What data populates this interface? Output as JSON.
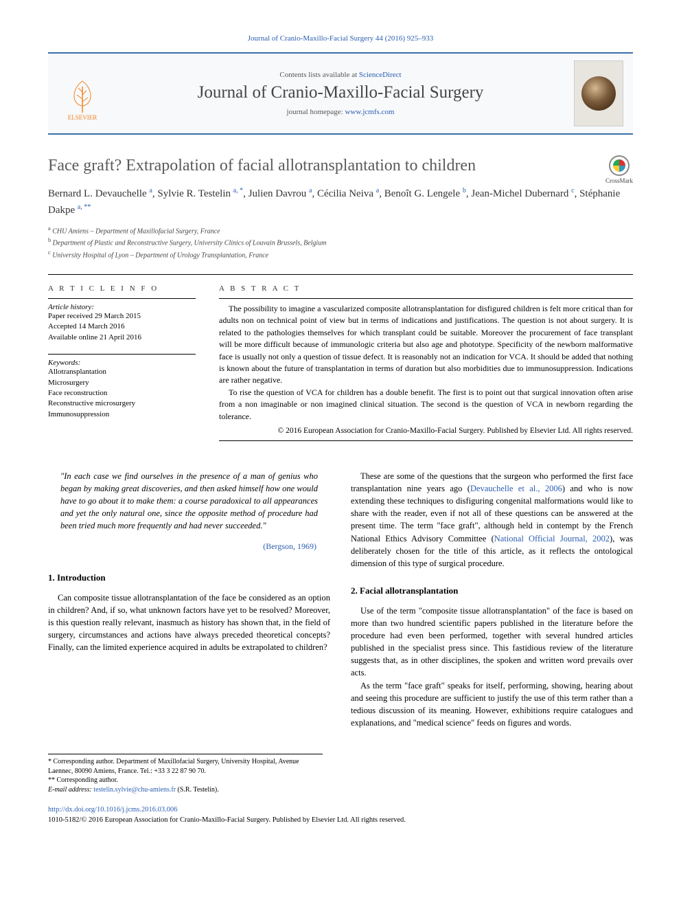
{
  "citation": {
    "journal": "Journal of Cranio-Maxillo-Facial Surgery",
    "vol_pages": "44 (2016) 925–933"
  },
  "header": {
    "contents_prefix": "Contents lists available at ",
    "contents_link": "ScienceDirect",
    "journal_name": "Journal of Cranio-Maxillo-Facial Surgery",
    "homepage_prefix": "journal homepage: ",
    "homepage_link": "www.jcmfs.com",
    "publisher_logo_label": "ELSEVIER"
  },
  "title": "Face graft? Extrapolation of facial allotransplantation to children",
  "crossmark_label": "CrossMark",
  "authors_html": "Bernard L. Devauchelle <sup>a</sup>, Sylvie R. Testelin <sup>a, *</sup>, Julien Davrou <sup>a</sup>, Cécilia Neiva <sup>a</sup>, Benoît G. Lengele <sup>b</sup>, Jean-Michel Dubernard <sup>c</sup>, Stéphanie Dakpe <sup>a, **</sup>",
  "affiliations": [
    {
      "mark": "a",
      "text": "CHU Amiens – Department of Maxillofacial Surgery, France"
    },
    {
      "mark": "b",
      "text": "Department of Plastic and Reconstructive Surgery, University Clinics of Louvain Brussels, Belgium"
    },
    {
      "mark": "c",
      "text": "University Hospital of Lyon – Department of Urology Transplantation, France"
    }
  ],
  "info": {
    "heading": "A R T I C L E   I N F O",
    "history_label": "Article history:",
    "history": [
      "Paper received 29 March 2015",
      "Accepted 14 March 2016",
      "Available online 21 April 2016"
    ],
    "keywords_label": "Keywords:",
    "keywords": [
      "Allotransplantation",
      "Microsurgery",
      "Face reconstruction",
      "Reconstructive microsurgery",
      "Immunosuppression"
    ]
  },
  "abstract": {
    "heading": "A B S T R A C T",
    "p1": "The possibility to imagine a vascularized composite allotransplantation for disfigured children is felt more critical than for adults non on technical point of view but in terms of indications and justifications. The question is not about surgery. It is related to the pathologies themselves for which transplant could be suitable. Moreover the procurement of face transplant will be more difficult because of immunologic criteria but also age and phototype. Specificity of the newborn malformative face is usually not only a question of tissue defect. It is reasonably not an indication for VCA. It should be added that nothing is known about the future of transplantation in terms of duration but also morbidities due to immunosuppression. Indications are rather negative.",
    "p2": "To rise the question of VCA for children has a double benefit. The first is to point out that surgical innovation often arise from a non imaginable or non imagined clinical situation. The second is the question of VCA in newborn regarding the tolerance.",
    "copyright": "© 2016 European Association for Cranio-Maxillo-Facial Surgery. Published by Elsevier Ltd. All rights reserved."
  },
  "epigraph": {
    "text": "\"In each case we find ourselves in the presence of a man of genius who began by making great discoveries, and then asked himself how one would have to go about it to make them: a course paradoxical to all appearances and yet the only natural one, since the opposite method of procedure had been tried much more frequently and had never succeeded.\"",
    "cite": "(Bergson, 1969)"
  },
  "sections": {
    "intro_head": "1.  Introduction",
    "intro_p1": "Can composite tissue allotransplantation of the face be considered as an option in children? And, if so, what unknown factors have yet to be resolved? Moreover, is this question really relevant, inasmuch as history has shown that, in the field of surgery, circumstances and actions have always preceded theoretical concepts? Finally, can the limited experience acquired in adults be extrapolated to children?",
    "right_p1_a": "These are some of the questions that the surgeon who performed the first face transplantation nine years ago (",
    "right_p1_link1": "Devauchelle et al., 2006",
    "right_p1_b": ") and who is now extending these techniques to disfiguring congenital malformations would like to share with the reader, even if not all of these questions can be answered at the present time. The term \"face graft\", although held in contempt by the French National Ethics Advisory Committee (",
    "right_p1_link2": "National Official Journal, 2002",
    "right_p1_c": "), was deliberately chosen for the title of this article, as it reflects the ontological dimension of this type of surgical procedure.",
    "sec2_head": "2.  Facial allotransplantation",
    "sec2_p1": "Use of the term \"composite tissue allotransplantation\" of the face is based on more than two hundred scientific papers published in the literature before the procedure had even been performed, together with several hundred articles published in the specialist press since. This fastidious review of the literature suggests that, as in other disciplines, the spoken and written word prevails over acts.",
    "sec2_p2": "As the term \"face graft\" speaks for itself, performing, showing, hearing about and seeing this procedure are sufficient to justify the use of this term rather than a tedious discussion of its meaning. However, exhibitions require catalogues and explanations, and \"medical science\" feeds on figures and words."
  },
  "footnotes": {
    "n1": "* Corresponding author. Department of Maxillofacial Surgery, University Hospital, Avenue Laennec, 80090 Amiens, France. Tel.: +33 3 22 87 90 70.",
    "n2": "** Corresponding author.",
    "email_label": "E-mail address:",
    "email": "testelin.sylvie@chu-amiens.fr",
    "email_who": "(S.R. Testelin)."
  },
  "footer": {
    "doi": "http://dx.doi.org/10.1016/j.jcms.2016.03.006",
    "issn_line": "1010-5182/© 2016 European Association for Cranio-Maxillo-Facial Surgery. Published by Elsevier Ltd. All rights reserved."
  },
  "colors": {
    "link": "#2a5db0",
    "rule": "#3a6fa8",
    "orange": "#f58220"
  }
}
